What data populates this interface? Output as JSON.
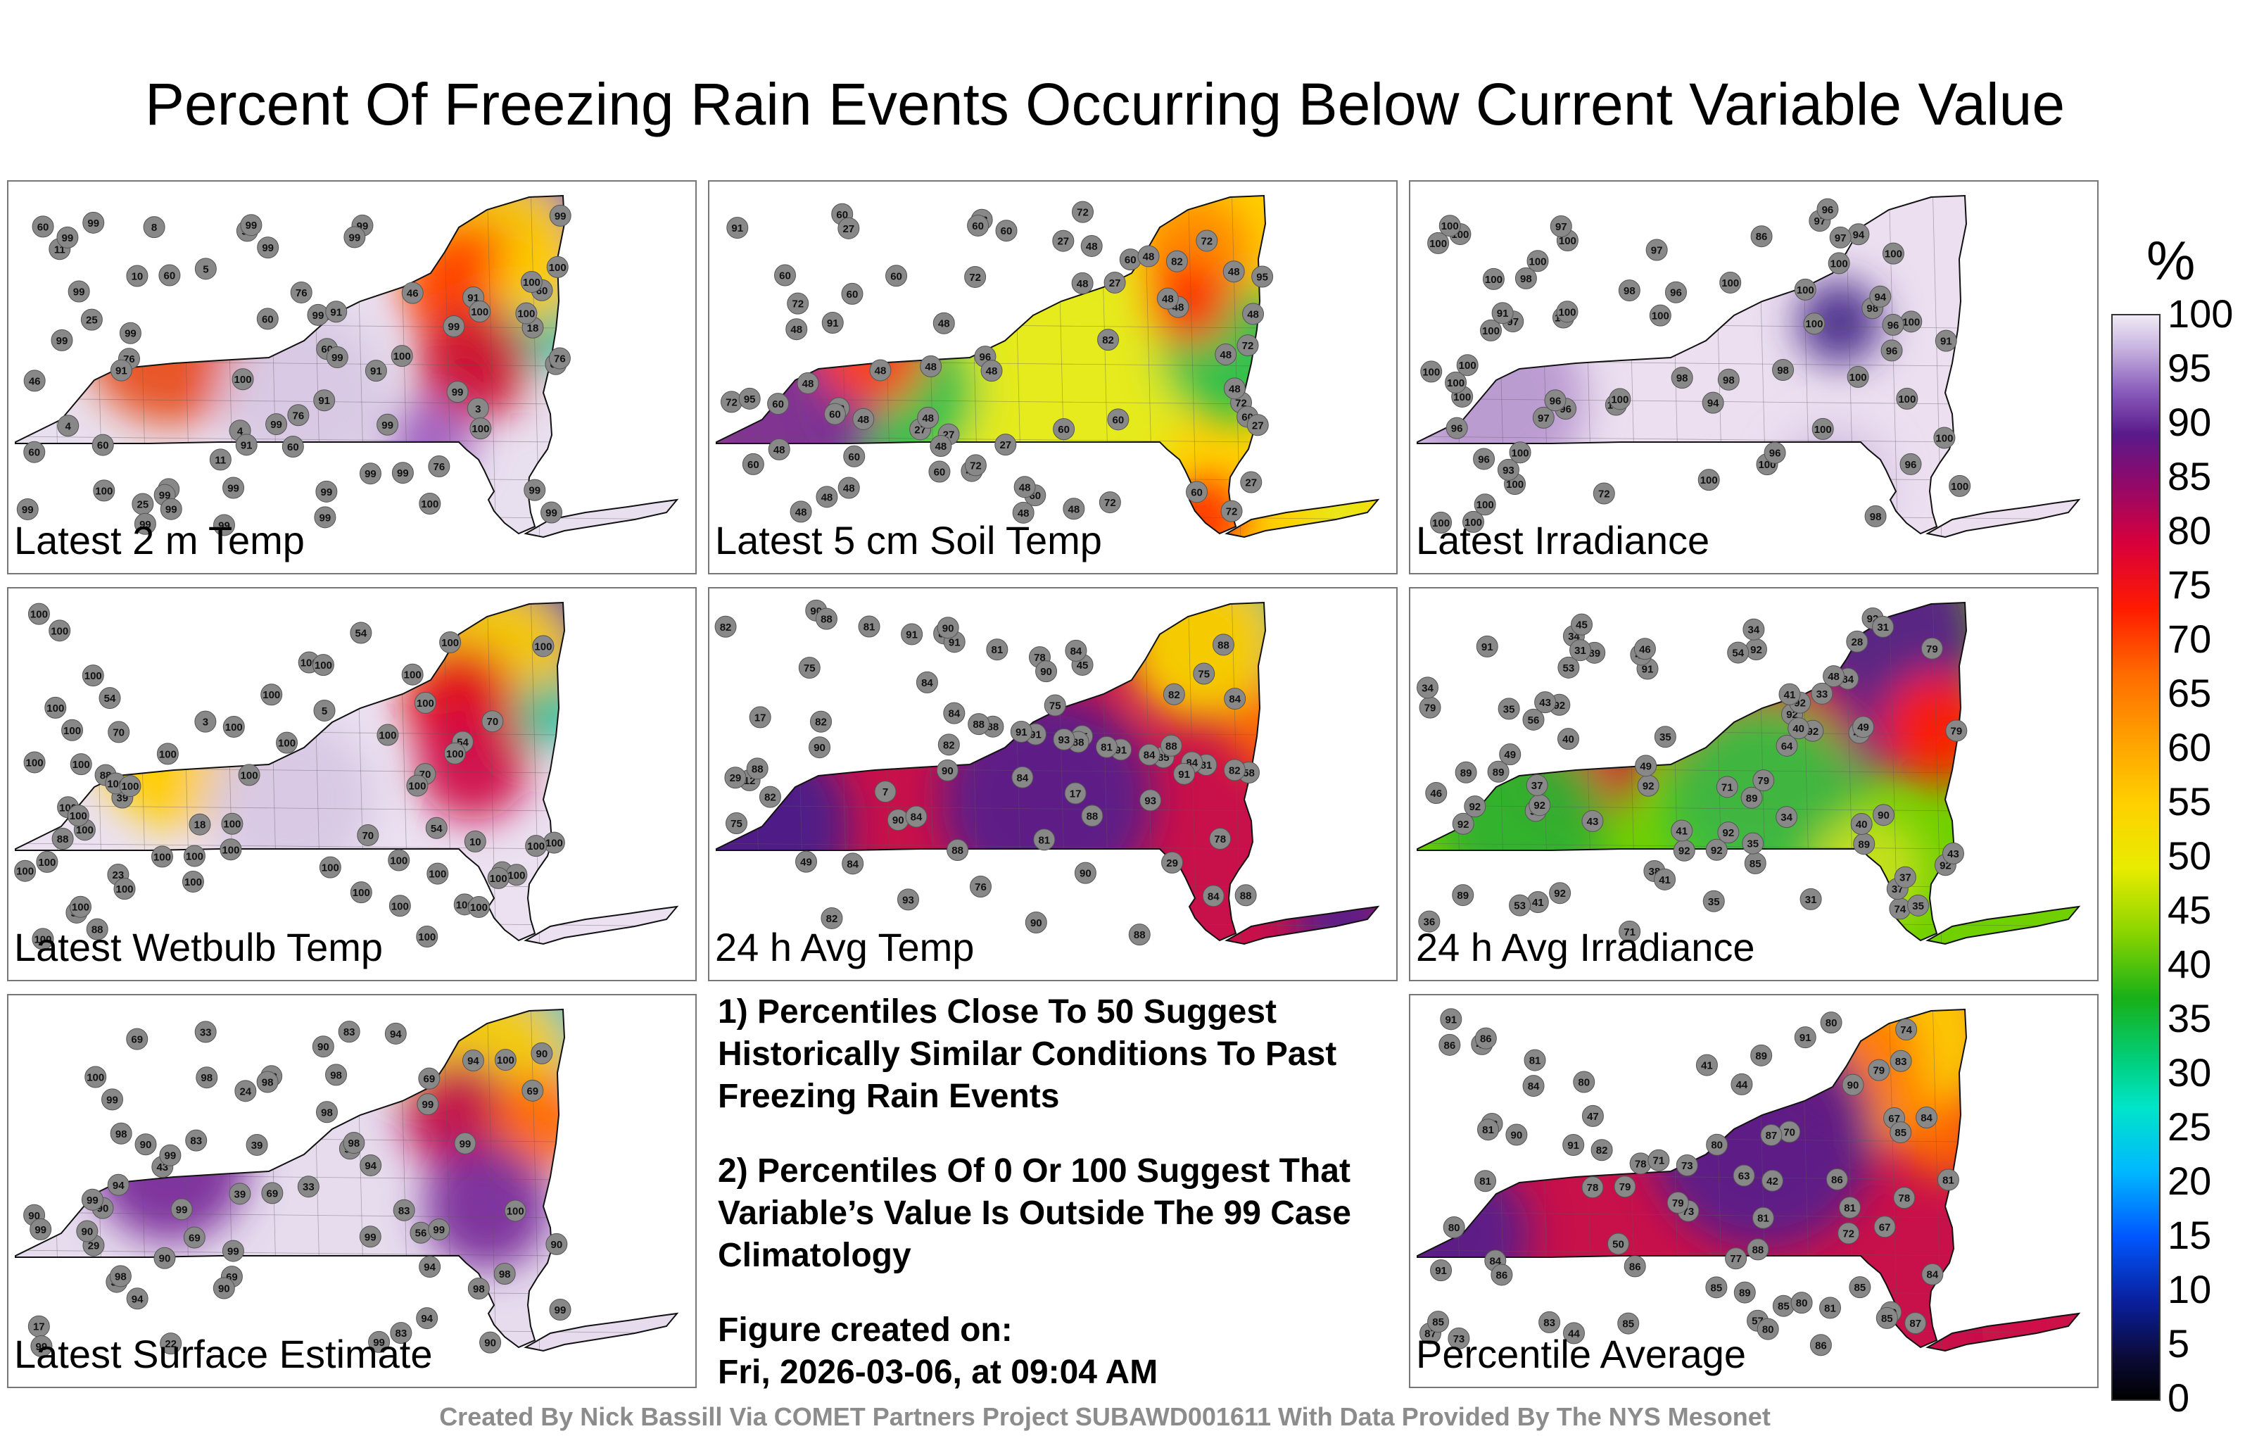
{
  "title": "Percent Of Freezing Rain Events Occurring Below Current Variable Value",
  "panels": [
    {
      "label": "Latest 2 m Temp",
      "palette": "temp2m",
      "stations": [
        "4",
        "4",
        "3",
        "5",
        "8",
        "25",
        "18",
        "11",
        "6",
        "10",
        "99",
        "60",
        "60",
        "46",
        "11",
        "100",
        "99",
        "91",
        "60",
        "60",
        "25",
        "60",
        "76",
        "76",
        "60",
        "46",
        "91",
        "91",
        "76",
        "60",
        "76",
        "99",
        "91",
        "99",
        "60",
        "100",
        "99",
        "76",
        "99",
        "91",
        "100",
        "99",
        "91",
        "99",
        "100",
        "60",
        "99",
        "99",
        "99",
        "99",
        "100",
        "99",
        "99",
        "100",
        "99",
        "99",
        "99",
        "99",
        "99",
        "99",
        "99",
        "100",
        "99",
        "99",
        "99",
        "100",
        "99",
        "99",
        "99",
        "99",
        "100",
        "99"
      ]
    },
    {
      "label": "Latest 5 cm Soil Temp",
      "palette": "soil",
      "stations": [
        "72",
        "60",
        "72",
        "27",
        "72",
        "60",
        "95",
        "60",
        "48",
        "48",
        "72",
        "82",
        "48",
        "91",
        "60",
        "27",
        "60",
        "72",
        "48",
        "60",
        "72",
        "27",
        "60",
        "48",
        "82",
        "48",
        "72",
        "48",
        "48",
        "60",
        "48",
        "91",
        "72",
        "48",
        "27",
        "27",
        "60",
        "48",
        "27",
        "60",
        "48",
        "72",
        "48",
        "60",
        "48",
        "48",
        "72",
        "60",
        "27",
        "48",
        "48",
        "60",
        "48",
        "48",
        "60",
        "48",
        "96",
        "95",
        "72",
        "48",
        "60",
        "48",
        "27",
        "48",
        "48",
        "60",
        "60",
        "48",
        "48",
        "48"
      ]
    },
    {
      "label": "Latest Irradiance",
      "palette": "irr",
      "stations": [
        "100",
        "100",
        "100",
        "100",
        "100",
        "100",
        "100",
        "100",
        "96",
        "100",
        "100",
        "100",
        "100",
        "72",
        "100",
        "100",
        "100",
        "100",
        "100",
        "96",
        "94",
        "97",
        "100",
        "100",
        "100",
        "100",
        "98",
        "100",
        "97",
        "100",
        "100",
        "97",
        "86",
        "91",
        "91",
        "96",
        "93",
        "96",
        "94",
        "98",
        "97",
        "100",
        "100",
        "98",
        "96",
        "98",
        "98",
        "100",
        "96",
        "100",
        "100",
        "100",
        "100",
        "98",
        "97",
        "96",
        "100",
        "96",
        "98",
        "100",
        "96",
        "96",
        "94",
        "97",
        "100"
      ]
    },
    {
      "label": "Latest Wetbulb Temp",
      "palette": "wetbulb",
      "stations": [
        "3",
        "5",
        "39",
        "6",
        "18",
        "23",
        "54",
        "54",
        "10",
        "100",
        "70",
        "54",
        "100",
        "70",
        "88",
        "100",
        "88",
        "54",
        "54",
        "70",
        "88",
        "100",
        "100",
        "100",
        "100",
        "100",
        "100",
        "100",
        "100",
        "100",
        "100",
        "100",
        "100",
        "100",
        "100",
        "100",
        "100",
        "100",
        "100",
        "100",
        "100",
        "100",
        "100",
        "100",
        "70",
        "100",
        "100",
        "100",
        "100",
        "100",
        "100",
        "100",
        "100",
        "100",
        "100",
        "100",
        "100",
        "100",
        "100",
        "100",
        "100",
        "100",
        "100",
        "100",
        "100",
        "100",
        "100"
      ]
    },
    {
      "label": "24 h Avg Temp",
      "palette": "avgtemp",
      "stations": [
        "17",
        "12",
        "7",
        "17",
        "29",
        "29",
        "49",
        "45",
        "75",
        "84",
        "58",
        "75",
        "90",
        "82",
        "82",
        "84",
        "78",
        "75",
        "75",
        "81",
        "76",
        "90",
        "84",
        "82",
        "75",
        "81",
        "82",
        "90",
        "85",
        "88",
        "82",
        "84",
        "81",
        "78",
        "91",
        "93",
        "90",
        "91",
        "84",
        "82",
        "81",
        "82",
        "90",
        "91",
        "84",
        "88",
        "88",
        "84",
        "93",
        "93",
        "88",
        "84",
        "81",
        "88",
        "90",
        "91",
        "88",
        "90",
        "91",
        "84",
        "88",
        "88",
        "84",
        "88",
        "88",
        "90",
        "91",
        "88",
        "84"
      ]
    },
    {
      "label": "24 h Avg Irradiance",
      "palette": "avgirr",
      "stations": [
        "92",
        "92",
        "92",
        "92",
        "92",
        "92",
        "92",
        "92",
        "92",
        "92",
        "92",
        "92",
        "91",
        "92",
        "92",
        "89",
        "92",
        "91",
        "92",
        "89",
        "89",
        "79",
        "84",
        "74",
        "79",
        "79",
        "85",
        "71",
        "89",
        "79",
        "90",
        "89",
        "89",
        "43",
        "49",
        "49",
        "38",
        "64",
        "41",
        "31",
        "31",
        "34",
        "34",
        "40",
        "36",
        "45",
        "56",
        "49",
        "54",
        "71",
        "41",
        "35",
        "43",
        "37",
        "35",
        "33",
        "34",
        "35",
        "35",
        "41",
        "48",
        "48",
        "46",
        "46",
        "53",
        "40",
        "43",
        "41",
        "37",
        "40",
        "31",
        "35",
        "37",
        "28",
        "34",
        "53",
        "43"
      ]
    },
    {
      "label": "Latest Surface Estimate",
      "palette": "surface",
      "stations": [
        "22",
        "17",
        "33",
        "39",
        "24",
        "29",
        "43",
        "62",
        "39",
        "69",
        "34",
        "33",
        "100",
        "90",
        "69",
        "56",
        "83",
        "69",
        "90",
        "69",
        "90",
        "69",
        "83",
        "94",
        "94",
        "94",
        "90",
        "83",
        "69",
        "90",
        "90",
        "98",
        "98",
        "94",
        "98",
        "94",
        "98",
        "94",
        "99",
        "98",
        "90",
        "90",
        "99",
        "99",
        "99",
        "99",
        "99",
        "98",
        "99",
        "99",
        "98",
        "94",
        "94",
        "98",
        "100",
        "100",
        "99",
        "99",
        "99",
        "99",
        "90",
        "83",
        "90",
        "98",
        "99"
      ]
    },
    {
      "label": "Percentile Average",
      "palette": "average",
      "stations": [
        "44",
        "41",
        "42",
        "57",
        "45",
        "72",
        "47",
        "50",
        "63",
        "70",
        "44",
        "73",
        "91",
        "89",
        "81",
        "78",
        "81",
        "87",
        "86",
        "91",
        "73",
        "90",
        "88",
        "81",
        "73",
        "67",
        "71",
        "67",
        "81",
        "87",
        "85",
        "79",
        "86",
        "77",
        "89",
        "85",
        "84",
        "80",
        "82",
        "81",
        "83",
        "79",
        "85",
        "85",
        "91",
        "85",
        "80",
        "81",
        "80",
        "83",
        "74",
        "80",
        "84",
        "80",
        "86",
        "91",
        "90",
        "86",
        "80",
        "78",
        "79",
        "78",
        "81",
        "84",
        "85",
        "89",
        "83",
        "86",
        "86",
        "84",
        "87",
        "85"
      ]
    }
  ],
  "notes": {
    "note1": "1) Percentiles Close To 50 Suggest Historically Similar Conditions To Past Freezing Rain Events",
    "note2": "2) Percentiles Of 0 Or 100 Suggest That Variable’s Value Is Outside The 99 Case Climatology",
    "created_label": "Figure created on:",
    "created_date": "Fri, 2026-03-06, at 09:04 AM"
  },
  "colorbar": {
    "unit": "%",
    "ticks": [
      "100",
      "95",
      "90",
      "85",
      "80",
      "75",
      "70",
      "65",
      "60",
      "55",
      "50",
      "45",
      "40",
      "35",
      "30",
      "25",
      "20",
      "15",
      "10",
      "5",
      "0"
    ]
  },
  "credit": "Created By Nick Bassill Via COMET Partners Project SUBAWD001611 With Data Provided By The NYS Mesonet"
}
